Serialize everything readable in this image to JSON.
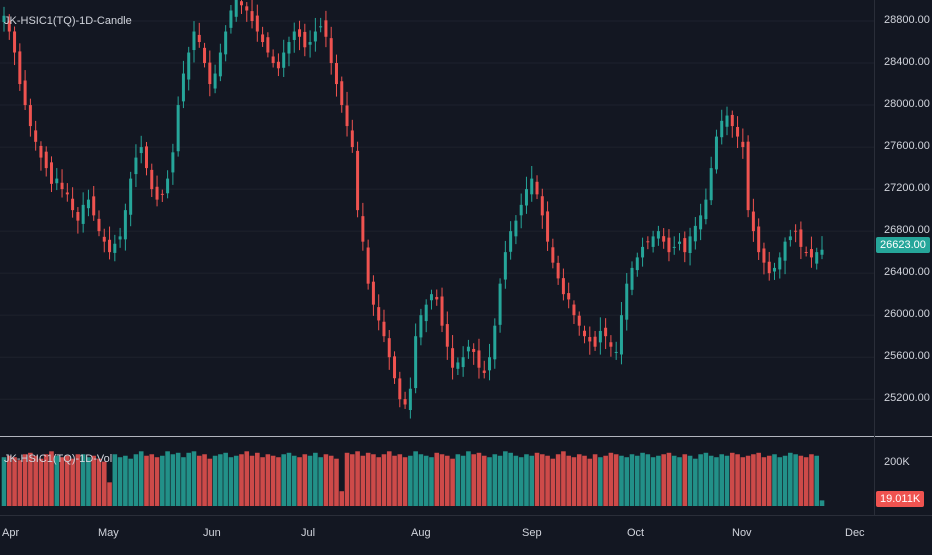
{
  "main_title": "JK-HSIC1(TQ)-1D-Candle",
  "volume_title": "JK-HSIC1(TQ)-1D-Vol",
  "colors": {
    "background": "#131722",
    "up": "#26a69a",
    "down": "#ef5350",
    "up_volume": "#26a69a",
    "down_volume": "#ef5350",
    "grid": "#1e222d",
    "separator": "#b2b5be"
  },
  "chart_data": [
    {
      "type": "candlestick",
      "title": "JK-HSIC1(TQ)-1D-Candle",
      "y_ticks": [
        "28800.00",
        "28400.00",
        "28000.00",
        "27600.00",
        "27200.00",
        "26800.00",
        "26400.00",
        "26000.00",
        "25600.00",
        "25200.00"
      ],
      "y_tick_values": [
        28800,
        28400,
        28000,
        27600,
        27200,
        26800,
        26400,
        26000,
        25600,
        25200
      ],
      "ylim": [
        24850,
        29000
      ],
      "x_ticks": [
        "Apr",
        "May",
        "Jun",
        "Jul",
        "Aug",
        "Sep",
        "Oct",
        "Nov",
        "Dec"
      ],
      "last_price_label": "26623.00",
      "last_price": 26623,
      "series_close": [
        28850,
        28700,
        28500,
        28200,
        28000,
        27800,
        27650,
        27500,
        27400,
        27250,
        27300,
        27200,
        27150,
        27000,
        26900,
        27050,
        27100,
        26950,
        26800,
        26700,
        26600,
        26680,
        26750,
        27000,
        27300,
        27500,
        27600,
        27400,
        27200,
        27100,
        27150,
        27300,
        27550,
        28000,
        28300,
        28500,
        28700,
        28600,
        28400,
        28200,
        28300,
        28500,
        28700,
        28900,
        29000,
        28950,
        28900,
        28800,
        28700,
        28600,
        28500,
        28400,
        28350,
        28500,
        28600,
        28700,
        28650,
        28550,
        28600,
        28700,
        28750,
        28650,
        28400,
        28200,
        28000,
        27800,
        27600,
        27000,
        26700,
        26300,
        26100,
        25950,
        25800,
        25600,
        25400,
        25200,
        25150,
        25300,
        25800,
        26000,
        26100,
        26200,
        26150,
        25900,
        25700,
        25500,
        25550,
        25600,
        25700,
        25650,
        25500,
        25450,
        25600,
        25900,
        26300,
        26600,
        26800,
        26900,
        27050,
        27200,
        27300,
        27150,
        26950,
        26700,
        26500,
        26350,
        26200,
        26150,
        26000,
        25900,
        25800,
        25750,
        25700,
        25850,
        25800,
        25700,
        25650,
        26000,
        26300,
        26450,
        26550,
        26650,
        26700,
        26750,
        26800,
        26700,
        26600,
        26650,
        26700,
        26600,
        26750,
        26850,
        26950,
        27100,
        27400,
        27700,
        27850,
        27900,
        27800,
        27700,
        27600,
        27000,
        26800,
        26600,
        26500,
        26400,
        26450,
        26550,
        26700,
        26750,
        26800,
        26650,
        26600,
        26550,
        26600,
        26623
      ],
      "volume_axis_label": "200K",
      "volume_label": "19.011K",
      "volume_values": [
        165,
        170,
        165,
        155,
        175,
        180,
        170,
        160,
        175,
        185,
        170,
        165,
        170,
        160,
        175,
        175,
        165,
        170,
        160,
        150,
        80,
        175,
        165,
        170,
        160,
        175,
        185,
        170,
        175,
        165,
        170,
        185,
        175,
        180,
        165,
        180,
        185,
        170,
        175,
        160,
        170,
        175,
        180,
        165,
        170,
        175,
        185,
        170,
        180,
        165,
        175,
        170,
        165,
        175,
        180,
        170,
        165,
        175,
        170,
        180,
        165,
        175,
        170,
        160,
        50,
        180,
        175,
        185,
        170,
        180,
        175,
        165,
        175,
        185,
        170,
        175,
        165,
        170,
        185,
        175,
        170,
        165,
        180,
        175,
        170,
        160,
        175,
        170,
        185,
        175,
        180,
        170,
        165,
        175,
        170,
        185,
        180,
        170,
        165,
        175,
        170,
        180,
        175,
        170,
        160,
        175,
        185,
        170,
        165,
        175,
        170,
        160,
        175,
        165,
        170,
        180,
        175,
        170,
        165,
        175,
        170,
        180,
        175,
        165,
        170,
        175,
        180,
        170,
        165,
        175,
        170,
        160,
        175,
        180,
        170,
        165,
        175,
        170,
        180,
        175,
        165,
        170,
        175,
        180,
        165,
        170,
        175,
        165,
        170,
        180,
        175,
        170,
        165,
        175,
        170,
        19
      ]
    }
  ]
}
